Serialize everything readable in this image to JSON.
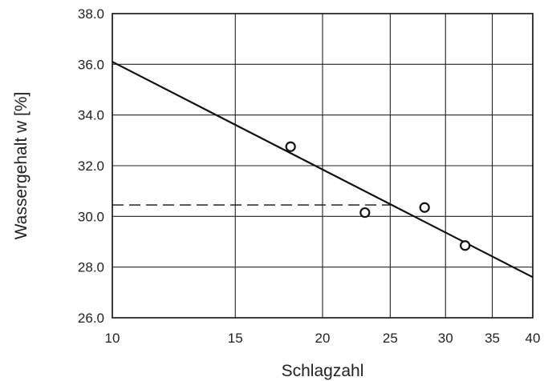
{
  "chart_data": {
    "type": "scatter",
    "title": "",
    "xlabel": "Schlagzahl",
    "ylabel": "Wassergehalt w [%]",
    "x_scale": "log",
    "xlim": [
      10,
      40
    ],
    "ylim": [
      26.0,
      38.0
    ],
    "x_ticks": [
      10,
      15,
      20,
      25,
      30,
      35,
      40
    ],
    "x_tick_labels": [
      "10",
      "15",
      "20",
      "25",
      "30",
      "35",
      "40"
    ],
    "y_ticks": [
      26,
      28,
      30,
      32,
      34,
      36,
      38
    ],
    "y_tick_labels": [
      "26.0",
      "28.0",
      "30.0",
      "32.0",
      "34.0",
      "36.0",
      "38.0"
    ],
    "grid": true,
    "series": [
      {
        "kind": "points",
        "marker": "open-circle",
        "x": [
          18,
          23,
          28,
          32
        ],
        "y": [
          32.75,
          30.15,
          30.35,
          28.85
        ]
      },
      {
        "kind": "fit-line",
        "x": [
          10,
          40
        ],
        "y": [
          36.1,
          27.6
        ]
      },
      {
        "kind": "reference-dashed",
        "x": [
          10,
          25
        ],
        "y": [
          30.45,
          30.45
        ]
      }
    ],
    "colors": {
      "line": "#111111",
      "grid": "#222222",
      "points": "#111111"
    }
  }
}
